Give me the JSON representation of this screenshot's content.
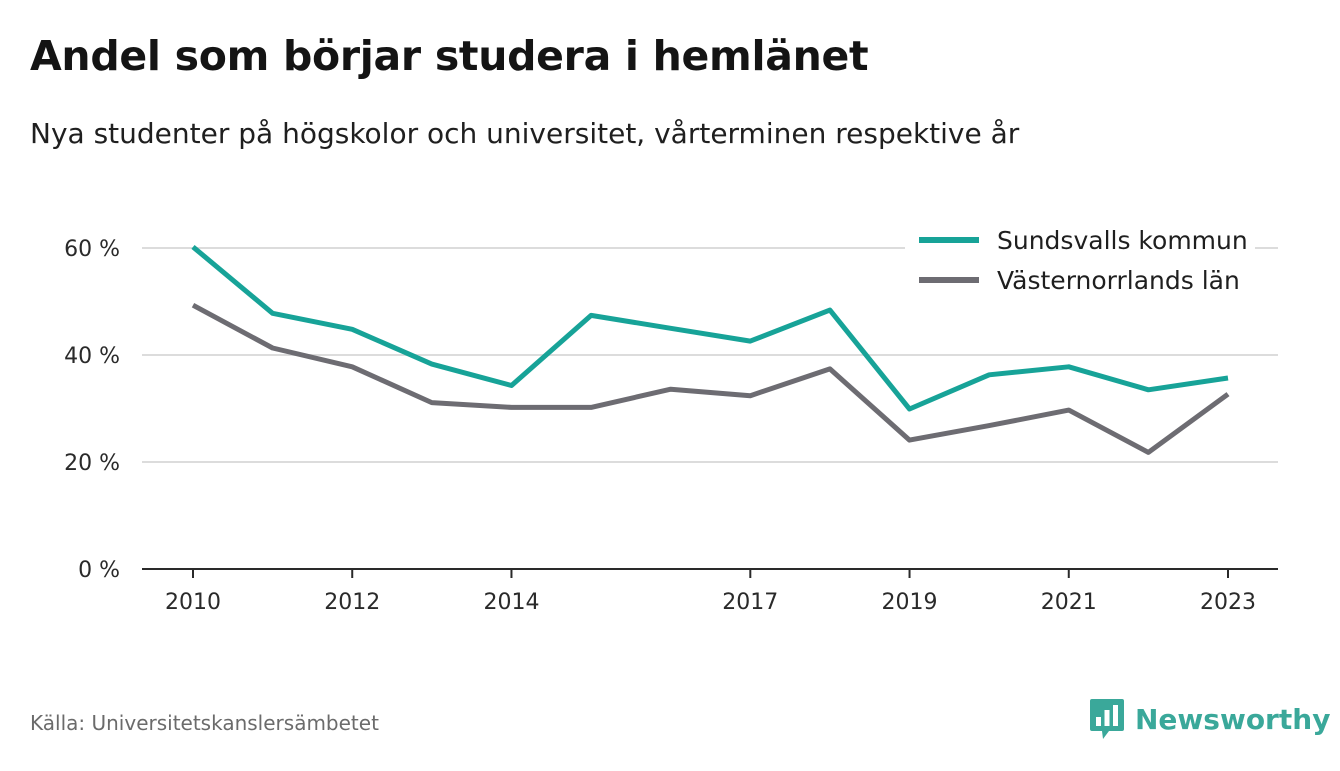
{
  "title": "Andel som börjar studera i hemlänet",
  "subtitle": "Nya studenter på högskolor och universitet, vårterminen respektive år",
  "source": "Källa: Universitetskanslersämbetet",
  "brand": {
    "name": "Newsworthy",
    "icon": "newsworthy-logo-icon",
    "color": "#3aa89a"
  },
  "chart_data": {
    "type": "line",
    "title": "Andel som börjar studera i hemlänet",
    "subtitle": "Nya studenter på högskolor och universitet, vårterminen respektive år",
    "x": [
      2010,
      2011,
      2012,
      2013,
      2014,
      2015,
      2016,
      2017,
      2018,
      2019,
      2020,
      2021,
      2022,
      2023
    ],
    "x_ticks": [
      "2010",
      "2012",
      "2014",
      "2017",
      "2019",
      "2021",
      "2023"
    ],
    "y_ticks": [
      0,
      20,
      40,
      60
    ],
    "y_tick_labels": [
      "0 %",
      "20 %",
      "40 %",
      "60 %"
    ],
    "ylim": [
      0,
      60
    ],
    "y_unit": "%",
    "grid": true,
    "legend_position": "top-right",
    "series": [
      {
        "name": "Sundsvalls kommun",
        "color": "#17a398",
        "values": [
          60.2,
          47.8,
          44.8,
          38.3,
          34.3,
          47.4,
          45.0,
          42.6,
          48.4,
          29.9,
          36.3,
          37.8,
          33.5,
          35.7
        ]
      },
      {
        "name": "Västernorrlands län",
        "color": "#6d6c72",
        "values": [
          49.3,
          41.3,
          37.8,
          31.1,
          30.2,
          30.2,
          33.6,
          32.4,
          37.4,
          24.1,
          26.8,
          29.7,
          21.8,
          32.7
        ]
      }
    ]
  }
}
